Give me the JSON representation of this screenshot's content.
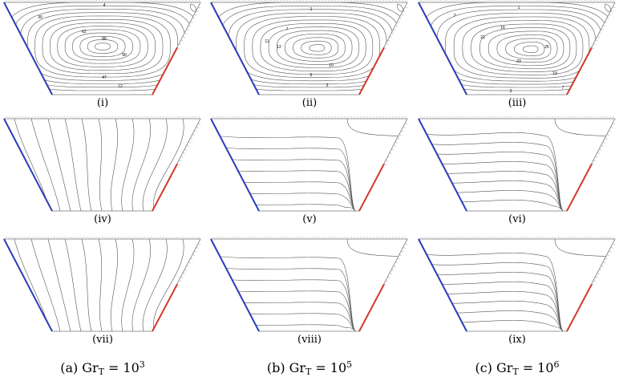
{
  "panels": [
    {
      "label": "(i)",
      "contour_labels": [
        4,
        30,
        62,
        86,
        90,
        47,
        12
      ]
    },
    {
      "label": "(ii)",
      "contour_labels": [
        1,
        7,
        11,
        12,
        10,
        6,
        3
      ]
    },
    {
      "label": "(iii)",
      "contour_labels": [
        1,
        7,
        16,
        21,
        25,
        23,
        19,
        7,
        3
      ]
    },
    {
      "label": "(iv)"
    },
    {
      "label": "(v)"
    },
    {
      "label": "(vi)"
    },
    {
      "label": "(vii)"
    },
    {
      "label": "(viii)"
    },
    {
      "label": "(ix)"
    }
  ],
  "captions": [
    {
      "prefix": "(a)",
      "symbol": "Gr",
      "subscript": "T",
      "equals": "=",
      "base": "10",
      "exponent": "3"
    },
    {
      "prefix": "(b)",
      "symbol": "Gr",
      "subscript": "T",
      "equals": "=",
      "base": "10",
      "exponent": "5"
    },
    {
      "prefix": "(c)",
      "symbol": "Gr",
      "subscript": "T",
      "equals": "=",
      "base": "10",
      "exponent": "6"
    }
  ]
}
